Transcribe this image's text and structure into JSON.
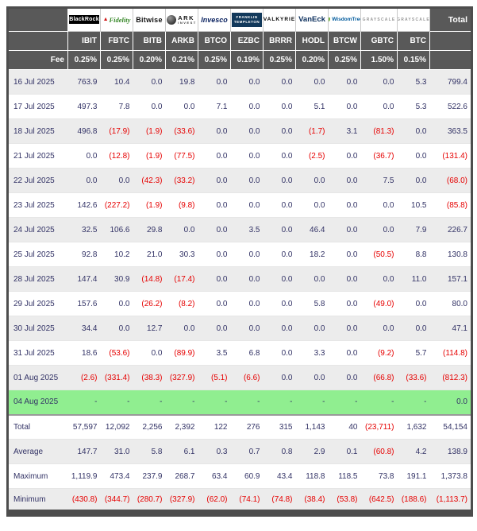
{
  "table": {
    "total_header": "Total",
    "fee_label": "Fee",
    "colors": {
      "header_bg": "#595959",
      "negative_text": "#e60000",
      "value_text": "#333366",
      "highlight_row_bg": "#90ee90",
      "alt_row_bg": "#ececec"
    },
    "columns": [
      {
        "ticker": "IBIT",
        "fee": "0.25%",
        "provider": "BlackRock",
        "brand": "blackrock"
      },
      {
        "ticker": "FBTC",
        "fee": "0.25%",
        "provider": "Fidelity",
        "brand": "fidelity"
      },
      {
        "ticker": "BITB",
        "fee": "0.20%",
        "provider": "Bitwise",
        "brand": "bitwise"
      },
      {
        "ticker": "ARKB",
        "fee": "0.21%",
        "provider": "ARK INVEST",
        "brand": "ark"
      },
      {
        "ticker": "BTCO",
        "fee": "0.25%",
        "provider": "Invesco",
        "brand": "invesco"
      },
      {
        "ticker": "EZBC",
        "fee": "0.19%",
        "provider": "FRANKLIN TEMPLETON",
        "brand": "franklin"
      },
      {
        "ticker": "BRRR",
        "fee": "0.25%",
        "provider": "VALKYRIE",
        "brand": "valkyrie"
      },
      {
        "ticker": "HODL",
        "fee": "0.20%",
        "provider": "VanEck",
        "brand": "vaneck"
      },
      {
        "ticker": "BTCW",
        "fee": "0.25%",
        "provider": "WisdomTree",
        "brand": "wisdomtree"
      },
      {
        "ticker": "GBTC",
        "fee": "1.50%",
        "provider": "GRAYSCALE",
        "brand": "grayscale"
      },
      {
        "ticker": "BTC",
        "fee": "0.15%",
        "provider": "GRAYSCALE",
        "brand": "grayscale"
      }
    ],
    "rows": [
      {
        "date": "16 Jul 2025",
        "values": [
          "763.9",
          "10.4",
          "0.0",
          "19.8",
          "0.0",
          "0.0",
          "0.0",
          "0.0",
          "0.0",
          "0.0",
          "5.3"
        ],
        "total": "799.4",
        "highlight": false
      },
      {
        "date": "17 Jul 2025",
        "values": [
          "497.3",
          "7.8",
          "0.0",
          "0.0",
          "7.1",
          "0.0",
          "0.0",
          "5.1",
          "0.0",
          "0.0",
          "5.3"
        ],
        "total": "522.6",
        "highlight": false
      },
      {
        "date": "18 Jul 2025",
        "values": [
          "496.8",
          "(17.9)",
          "(1.9)",
          "(33.6)",
          "0.0",
          "0.0",
          "0.0",
          "(1.7)",
          "3.1",
          "(81.3)",
          "0.0"
        ],
        "total": "363.5",
        "highlight": false
      },
      {
        "date": "21 Jul 2025",
        "values": [
          "0.0",
          "(12.8)",
          "(1.9)",
          "(77.5)",
          "0.0",
          "0.0",
          "0.0",
          "(2.5)",
          "0.0",
          "(36.7)",
          "0.0"
        ],
        "total": "(131.4)",
        "highlight": false
      },
      {
        "date": "22 Jul 2025",
        "values": [
          "0.0",
          "0.0",
          "(42.3)",
          "(33.2)",
          "0.0",
          "0.0",
          "0.0",
          "0.0",
          "0.0",
          "7.5",
          "0.0"
        ],
        "total": "(68.0)",
        "highlight": false
      },
      {
        "date": "23 Jul 2025",
        "values": [
          "142.6",
          "(227.2)",
          "(1.9)",
          "(9.8)",
          "0.0",
          "0.0",
          "0.0",
          "0.0",
          "0.0",
          "0.0",
          "10.5"
        ],
        "total": "(85.8)",
        "highlight": false
      },
      {
        "date": "24 Jul 2025",
        "values": [
          "32.5",
          "106.6",
          "29.8",
          "0.0",
          "0.0",
          "3.5",
          "0.0",
          "46.4",
          "0.0",
          "0.0",
          "7.9"
        ],
        "total": "226.7",
        "highlight": false
      },
      {
        "date": "25 Jul 2025",
        "values": [
          "92.8",
          "10.2",
          "21.0",
          "30.3",
          "0.0",
          "0.0",
          "0.0",
          "18.2",
          "0.0",
          "(50.5)",
          "8.8"
        ],
        "total": "130.8",
        "highlight": false
      },
      {
        "date": "28 Jul 2025",
        "values": [
          "147.4",
          "30.9",
          "(14.8)",
          "(17.4)",
          "0.0",
          "0.0",
          "0.0",
          "0.0",
          "0.0",
          "0.0",
          "11.0"
        ],
        "total": "157.1",
        "highlight": false
      },
      {
        "date": "29 Jul 2025",
        "values": [
          "157.6",
          "0.0",
          "(26.2)",
          "(8.2)",
          "0.0",
          "0.0",
          "0.0",
          "5.8",
          "0.0",
          "(49.0)",
          "0.0"
        ],
        "total": "80.0",
        "highlight": false
      },
      {
        "date": "30 Jul 2025",
        "values": [
          "34.4",
          "0.0",
          "12.7",
          "0.0",
          "0.0",
          "0.0",
          "0.0",
          "0.0",
          "0.0",
          "0.0",
          "0.0"
        ],
        "total": "47.1",
        "highlight": false
      },
      {
        "date": "31 Jul 2025",
        "values": [
          "18.6",
          "(53.6)",
          "0.0",
          "(89.9)",
          "3.5",
          "6.8",
          "0.0",
          "3.3",
          "0.0",
          "(9.2)",
          "5.7"
        ],
        "total": "(114.8)",
        "highlight": false
      },
      {
        "date": "01 Aug 2025",
        "values": [
          "(2.6)",
          "(331.4)",
          "(38.3)",
          "(327.9)",
          "(5.1)",
          "(6.6)",
          "0.0",
          "0.0",
          "0.0",
          "(66.8)",
          "(33.6)"
        ],
        "total": "(812.3)",
        "highlight": false
      },
      {
        "date": "04 Aug 2025",
        "values": [
          "-",
          "-",
          "-",
          "-",
          "-",
          "-",
          "-",
          "-",
          "-",
          "-",
          "-"
        ],
        "total": "0.0",
        "highlight": true
      }
    ],
    "summary_rows": [
      {
        "label": "Total",
        "values": [
          "57,597",
          "12,092",
          "2,256",
          "2,392",
          "122",
          "276",
          "315",
          "1,143",
          "40",
          "(23,711)",
          "1,632"
        ],
        "total": "54,154"
      },
      {
        "label": "Average",
        "values": [
          "147.7",
          "31.0",
          "5.8",
          "6.1",
          "0.3",
          "0.7",
          "0.8",
          "2.9",
          "0.1",
          "(60.8)",
          "4.2"
        ],
        "total": "138.9"
      },
      {
        "label": "Maximum",
        "values": [
          "1,119.9",
          "473.4",
          "237.9",
          "268.7",
          "63.4",
          "60.9",
          "43.4",
          "118.8",
          "118.5",
          "73.8",
          "191.1"
        ],
        "total": "1,373.8"
      },
      {
        "label": "Minimum",
        "values": [
          "(430.8)",
          "(344.7)",
          "(280.7)",
          "(327.9)",
          "(62.0)",
          "(74.1)",
          "(74.8)",
          "(38.4)",
          "(53.8)",
          "(642.5)",
          "(188.6)"
        ],
        "total": "(1,113.7)"
      }
    ]
  }
}
